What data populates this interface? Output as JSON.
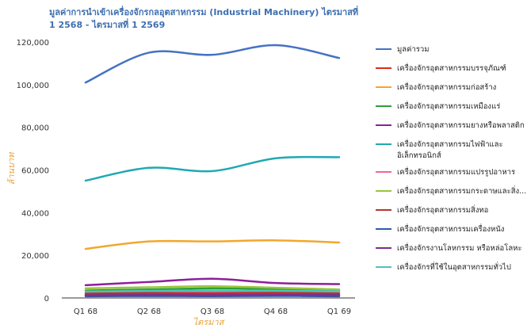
{
  "chart_data": {
    "type": "line",
    "title": "มูลค่าการนำเข้าเครื่องจักรกลอุตสาหกรรม (Industrial Machinery) ไตรมาสที่ 1 2568 - ไตรมาสที่ 1 2569",
    "xlabel": "ไตรมาส",
    "ylabel": "ล้านบาท",
    "categories": [
      "Q1 68",
      "Q2 68",
      "Q3 68",
      "Q4 68",
      "Q1 69"
    ],
    "ylim": [
      0,
      120000
    ],
    "yticks": [
      "0",
      "20,000",
      "40,000",
      "60,000",
      "80,000",
      "100,000",
      "120,000"
    ],
    "grid": false,
    "legend_position": "right",
    "series": [
      {
        "name": "มูลค่ารวม",
        "color": "#4472c4",
        "values": [
          101000,
          115000,
          114000,
          118500,
          112500
        ]
      },
      {
        "name": "เครื่องจักรอุตสาหกรรมบรรจุภัณฑ์",
        "color": "#d62d20",
        "values": [
          1500,
          1700,
          1600,
          1800,
          1500
        ]
      },
      {
        "name": "เครื่องจักรอุตสาหกรรมก่อสร้าง",
        "color": "#f2a72c",
        "values": [
          23000,
          26500,
          26500,
          27000,
          26000
        ]
      },
      {
        "name": "เครื่องจักรอุตสาหกรรมเหมืองแร่",
        "color": "#2e9e3a",
        "values": [
          3500,
          4000,
          4500,
          4200,
          3500
        ]
      },
      {
        "name": "เครื่องจักรอุตสาหกรรมยางหรือพลาสติก",
        "color": "#8e1f9b",
        "values": [
          6000,
          7500,
          9000,
          7000,
          6500
        ]
      },
      {
        "name": "เครื่องจักรอุตสาหกรรมไฟฟ้าและอิเล็กทรอนิกส์",
        "color": "#1fa9b2",
        "values": [
          55000,
          61000,
          59500,
          65500,
          66000
        ]
      },
      {
        "name": "เครื่องจักรอุตสาหกรรมแปรรูปอาหาร",
        "color": "#ec6b94",
        "values": [
          2500,
          2800,
          3000,
          2900,
          2600
        ]
      },
      {
        "name": "เครื่องจักรอุตสาหกรรมกระดาษและสิ่ง...",
        "color": "#9bc53d",
        "values": [
          4500,
          5000,
          5500,
          4800,
          4000
        ]
      },
      {
        "name": "เครื่องจักรอุตสาหกรรมสิ่งทอ",
        "color": "#b5362a",
        "values": [
          2000,
          2300,
          2200,
          2400,
          2100
        ]
      },
      {
        "name": "เครื่องจักรอุตสาหกรรมเครื่องหนัง",
        "color": "#2f5ba8",
        "values": [
          800,
          900,
          850,
          950,
          800
        ]
      },
      {
        "name": "เครื่องจักรงานโลหกรรม หรือหล่อโลหะ",
        "color": "#7a2f8f",
        "values": [
          1200,
          1400,
          1300,
          1500,
          1300
        ]
      },
      {
        "name": "เครื่องจักรที่ใช้ในอุตสาหกรรมทั่วไป",
        "color": "#4fc1b8",
        "values": [
          3000,
          3300,
          3500,
          3400,
          3100
        ]
      }
    ]
  }
}
